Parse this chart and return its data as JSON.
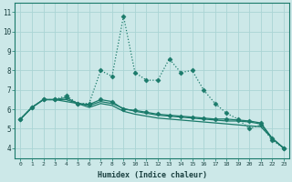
{
  "xlabel": "Humidex (Indice chaleur)",
  "background_color": "#cce8e8",
  "grid_color": "#aad4d4",
  "line_color": "#1a7a6a",
  "xlim": [
    -0.5,
    23.5
  ],
  "ylim": [
    3.5,
    11.5
  ],
  "xticks": [
    0,
    1,
    2,
    3,
    4,
    5,
    6,
    7,
    8,
    9,
    10,
    11,
    12,
    13,
    14,
    15,
    16,
    17,
    18,
    19,
    20,
    21,
    22,
    23
  ],
  "yticks": [
    4,
    5,
    6,
    7,
    8,
    9,
    10,
    11
  ],
  "series": [
    [
      5.5,
      6.1,
      6.5,
      6.5,
      6.7,
      6.3,
      6.3,
      8.0,
      7.7,
      10.8,
      7.9,
      7.5,
      7.5,
      8.6,
      7.9,
      8.0,
      7.0,
      6.3,
      5.8,
      5.5,
      5.0,
      5.2,
      4.4,
      4.0
    ],
    [
      5.5,
      6.1,
      6.5,
      6.5,
      6.6,
      6.3,
      6.25,
      6.5,
      6.4,
      6.0,
      5.95,
      5.85,
      5.75,
      5.7,
      5.65,
      5.6,
      5.55,
      5.5,
      5.5,
      5.45,
      5.4,
      5.3,
      4.5,
      4.0
    ],
    [
      5.5,
      6.1,
      6.5,
      6.5,
      6.5,
      6.3,
      6.2,
      6.4,
      6.3,
      6.05,
      5.9,
      5.8,
      5.7,
      5.65,
      5.6,
      5.55,
      5.5,
      5.45,
      5.4,
      5.4,
      5.35,
      5.25,
      4.5,
      4.0
    ],
    [
      5.5,
      6.1,
      6.5,
      6.5,
      6.4,
      6.3,
      6.1,
      6.3,
      6.2,
      5.9,
      5.75,
      5.65,
      5.55,
      5.5,
      5.45,
      5.4,
      5.35,
      5.3,
      5.25,
      5.2,
      5.15,
      5.1,
      4.5,
      4.0
    ]
  ],
  "series_styles": [
    {
      "linestyle": "dotted",
      "marker": "D",
      "markersize": 2.5,
      "linewidth": 0.9
    },
    {
      "linestyle": "solid",
      "marker": "D",
      "markersize": 2.5,
      "linewidth": 0.9
    },
    {
      "linestyle": "solid",
      "marker": null,
      "markersize": 0,
      "linewidth": 0.9
    },
    {
      "linestyle": "solid",
      "marker": null,
      "markersize": 0,
      "linewidth": 0.9
    }
  ]
}
